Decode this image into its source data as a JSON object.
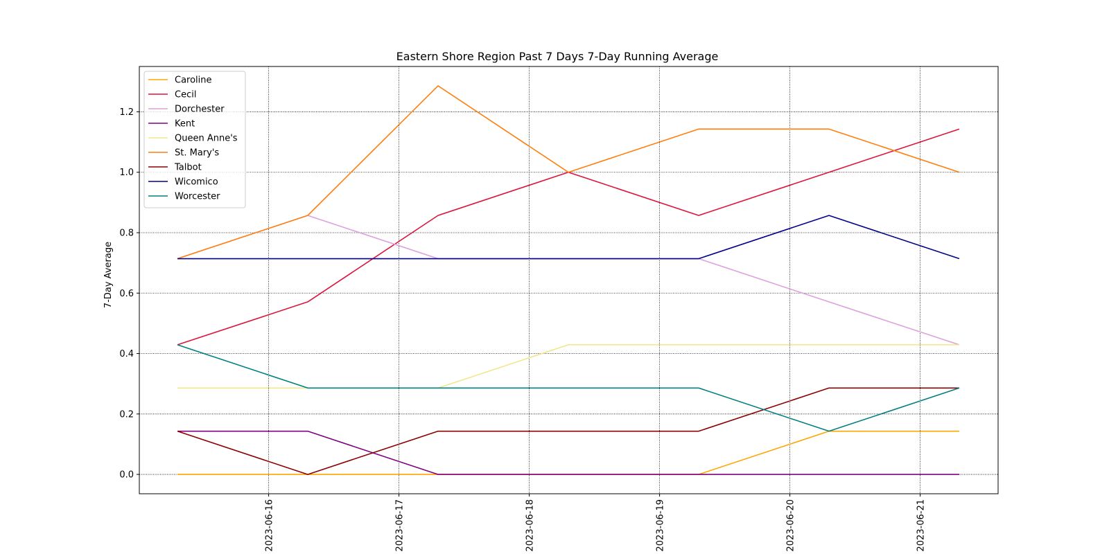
{
  "chart_data": {
    "type": "line",
    "title": "Eastern Shore Region Past 7 Days 7-Day Running Average",
    "xlabel": "",
    "ylabel": "7-Day Average",
    "x": [
      "2023-06-15",
      "2023-06-16",
      "2023-06-17",
      "2023-06-18",
      "2023-06-19",
      "2023-06-20",
      "2023-06-21"
    ],
    "xticks": [
      "2023-06-16",
      "2023-06-17",
      "2023-06-18",
      "2023-06-19",
      "2023-06-20",
      "2023-06-21"
    ],
    "yticks": [
      "0.0",
      "0.2",
      "0.4",
      "0.6",
      "0.8",
      "1.0",
      "1.2"
    ],
    "ylim": [
      -0.064,
      1.35
    ],
    "grid": true,
    "legend_position": "upper left",
    "series": [
      {
        "name": "Caroline",
        "color": "#ffa500",
        "values": [
          0.0,
          0.0,
          0.0,
          0.0,
          0.0,
          0.143,
          0.143
        ]
      },
      {
        "name": "Cecil",
        "color": "#dc143c",
        "values": [
          0.429,
          0.571,
          0.857,
          1.0,
          0.857,
          1.0,
          1.143
        ]
      },
      {
        "name": "Dorchester",
        "color": "#dda0dd",
        "values": [
          0.714,
          0.857,
          0.714,
          0.714,
          0.714,
          0.571,
          0.429
        ]
      },
      {
        "name": "Kent",
        "color": "#800080",
        "values": [
          0.143,
          0.143,
          0.0,
          0.0,
          0.0,
          0.0,
          0.0
        ]
      },
      {
        "name": "Queen Anne's",
        "color": "#f0e68c",
        "values": [
          0.286,
          0.286,
          0.286,
          0.429,
          0.429,
          0.429,
          0.429
        ]
      },
      {
        "name": "St. Mary's",
        "color": "#ff7f0e",
        "values": [
          0.714,
          0.857,
          1.286,
          1.0,
          1.143,
          1.143,
          1.0
        ]
      },
      {
        "name": "Talbot",
        "color": "#8b0000",
        "values": [
          0.143,
          0.0,
          0.143,
          0.143,
          0.143,
          0.286,
          0.286
        ]
      },
      {
        "name": "Wicomico",
        "color": "#00008b",
        "values": [
          0.714,
          0.714,
          0.714,
          0.714,
          0.714,
          0.857,
          0.714
        ]
      },
      {
        "name": "Worcester",
        "color": "#008080",
        "values": [
          0.429,
          0.286,
          0.286,
          0.286,
          0.286,
          0.143,
          0.286
        ]
      }
    ]
  }
}
